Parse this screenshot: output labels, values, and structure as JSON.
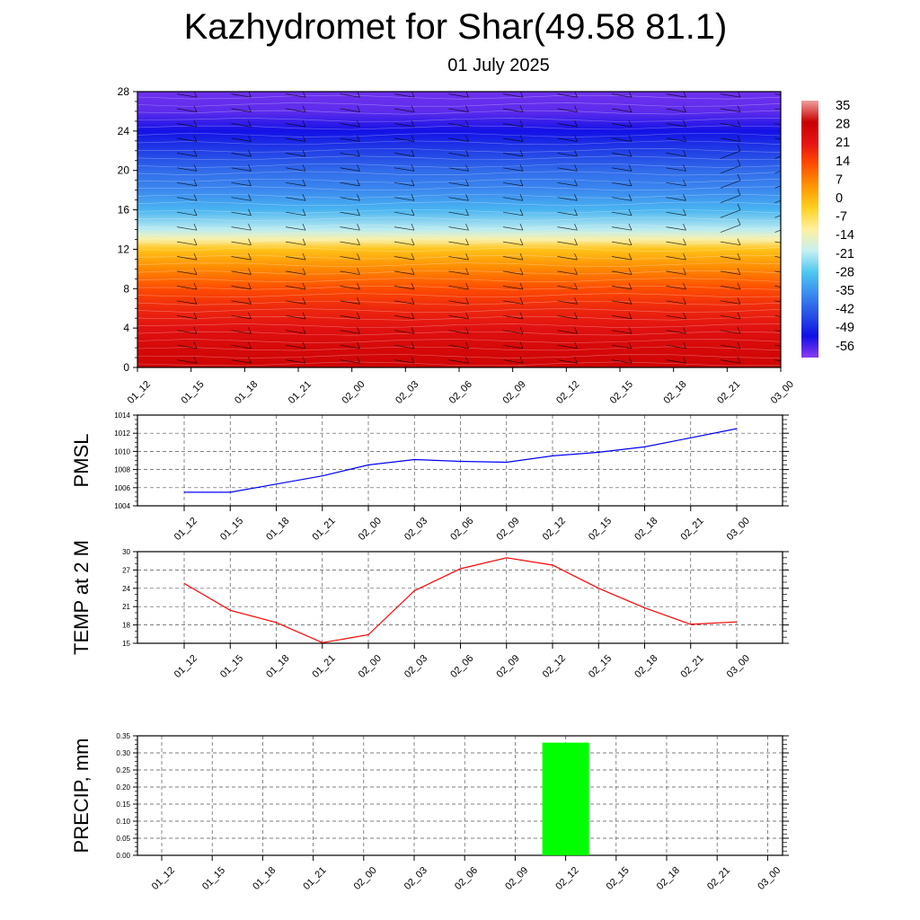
{
  "title": "Kazhydromet for Shar(49.58 81.1)",
  "subtitle": "01 July 2025",
  "time_labels": [
    "01_12",
    "01_15",
    "01_18",
    "01_21",
    "02_00",
    "02_03",
    "02_06",
    "02_09",
    "02_12",
    "02_15",
    "02_18",
    "02_21",
    "03_00"
  ],
  "colorbar": {
    "labels": [
      "35",
      "28",
      "21",
      "14",
      "7",
      "0",
      "-7",
      "-14",
      "-21",
      "-28",
      "-35",
      "-42",
      "-49",
      "-56"
    ]
  },
  "chart_data": [
    {
      "type": "heatmap",
      "title": "",
      "xlabel": "",
      "ylabel": "",
      "x": [
        "01_12",
        "01_15",
        "01_18",
        "01_21",
        "02_00",
        "02_03",
        "02_06",
        "02_09",
        "02_12",
        "02_15",
        "02_18",
        "02_21",
        "03_00"
      ],
      "y_ticks": [
        0,
        4,
        8,
        12,
        16,
        20,
        24,
        28
      ],
      "ylim": [
        0,
        28
      ],
      "value_range": [
        -60,
        38
      ],
      "temperature_profile": {
        "levels": [
          0,
          2,
          4,
          6,
          8,
          10,
          12,
          13,
          14,
          16,
          18,
          20,
          22,
          24,
          26,
          28
        ],
        "values": [
          28,
          26,
          23,
          19,
          14,
          7,
          -1,
          -12,
          -20,
          -30,
          -36,
          -40,
          -46,
          -52,
          -57,
          -58
        ]
      },
      "wind_barbs": true,
      "colors": [
        "#8c3cf0",
        "#1010e6",
        "#2850e6",
        "#3c8cf0",
        "#50c8f0",
        "#c8f0f0",
        "#fff0a0",
        "#ffd020",
        "#ff9600",
        "#ff5000",
        "#e61414",
        "#c80000",
        "#f0a0a0"
      ]
    },
    {
      "type": "line",
      "ylabel": "PMSL",
      "categories": [
        "01_12",
        "01_15",
        "01_18",
        "01_21",
        "02_00",
        "02_03",
        "02_06",
        "02_09",
        "02_12",
        "02_15",
        "02_18",
        "02_21",
        "03_00"
      ],
      "y_ticks": [
        "1004",
        "1006",
        "1008",
        "1010",
        "1012",
        "1014"
      ],
      "ylim": [
        1004,
        1014
      ],
      "grid": true,
      "series": [
        {
          "values": [
            1005.5,
            1005.5,
            1006.4,
            1007.3,
            1008.5,
            1009.1,
            1008.9,
            1008.8,
            1009.5,
            1009.9,
            1010.5,
            1011.5,
            1012.5
          ],
          "color": "#0000ff"
        }
      ]
    },
    {
      "type": "line",
      "ylabel": "TEMP at 2 M",
      "categories": [
        "01_12",
        "01_15",
        "01_18",
        "01_21",
        "02_00",
        "02_03",
        "02_06",
        "02_09",
        "02_12",
        "02_15",
        "02_18",
        "02_21",
        "03_00"
      ],
      "y_ticks": [
        "15",
        "18",
        "21",
        "24",
        "27",
        "30"
      ],
      "ylim": [
        15,
        30
      ],
      "grid": true,
      "series": [
        {
          "values": [
            24.8,
            20.4,
            18.4,
            15.1,
            16.4,
            23.6,
            27.2,
            29.0,
            27.8,
            24.0,
            20.8,
            18.1,
            18.5
          ],
          "color": "#ff0000"
        }
      ]
    },
    {
      "type": "bar",
      "ylabel": "PRECIP, mm",
      "categories": [
        "01_12",
        "01_15",
        "01_18",
        "01_21",
        "02_00",
        "02_03",
        "02_06",
        "02_09",
        "02_12",
        "02_15",
        "02_18",
        "02_21",
        "03_00"
      ],
      "y_ticks": [
        "0.00",
        "0.05",
        "0.10",
        "0.15",
        "0.20",
        "0.25",
        "0.30",
        "0.35"
      ],
      "ylim": [
        0,
        0.35
      ],
      "grid": true,
      "values": [
        0,
        0,
        0,
        0,
        0,
        0,
        0,
        0,
        0.33,
        0,
        0,
        0,
        0
      ],
      "color": "#00ff00"
    }
  ]
}
